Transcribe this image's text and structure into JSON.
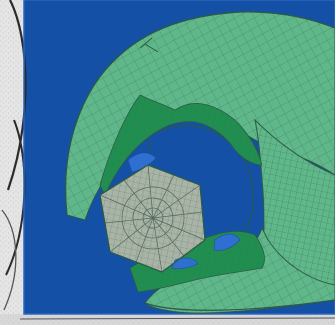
{
  "image": {
    "subject": "finite-element-mesh-wrench-jaw",
    "colors": {
      "background_blue": "#1450a6",
      "mesh_light_green": "#5fb88a",
      "mesh_dark_green": "#1f8f4f",
      "mesh_line": "#4d7d66",
      "contact_blue": "#2f6fd1",
      "bolt_gray": "#a9b3a6",
      "paper_left": "#e5e5e5",
      "paper_bottom": "#d8d8d8",
      "ink": "#2b2b2b"
    }
  }
}
